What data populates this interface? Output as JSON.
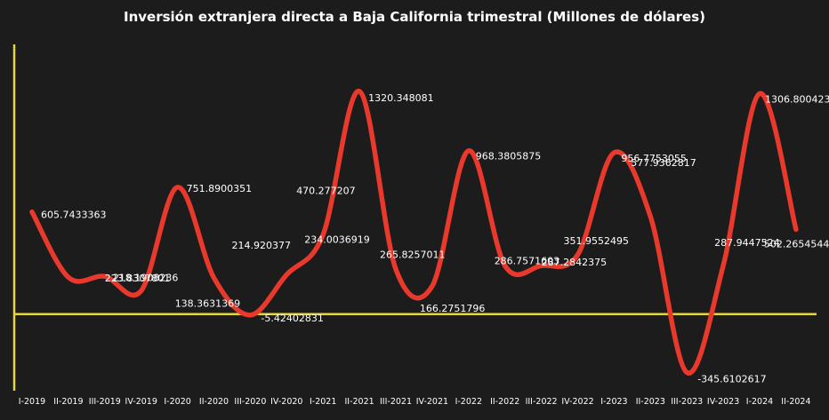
{
  "chart_data": {
    "type": "line",
    "title": "Inversión extranjera directa a Baja California trimestral (Millones de dólares)",
    "xlabel": "",
    "ylabel": "",
    "categories": [
      "I-2019",
      "II-2019",
      "III-2019",
      "IV-2019",
      "I-2020",
      "II-2020",
      "III-2020",
      "IV-2020",
      "I-2021",
      "II-2021",
      "III-2021",
      "IV-2021",
      "I-2022",
      "II-2022",
      "III-2022",
      "IV-2022",
      "I-2023",
      "II-2023",
      "III-2023",
      "IV-2023",
      "I-2024",
      "II-2024"
    ],
    "series": [
      {
        "values": [
          605.7433363,
          218.1908236,
          223.8307801,
          138.3631369,
          751.8900351,
          214.920377,
          -5.42402831,
          234.0036919,
          470.277207,
          1320.348081,
          265.8257011,
          166.2751796,
          968.3805875,
          286.7571603,
          287.2842375,
          351.9552495,
          956.7753055,
          577.9362817,
          -345.6102617,
          287.9447524,
          1306.800423,
          502.2654544
        ],
        "labels": [
          "605.7433363",
          "218.1908236",
          "223.8307801",
          "138.3631369",
          "751.8900351",
          "214.920377",
          "-5.42402831",
          "234.0036919",
          "470.277207",
          "1320.348081",
          "265.8257011",
          "166.2751796",
          "968.3805875",
          "286.7571603",
          "287.2842375",
          "351.9552495",
          "956.7753055",
          "577.9362817",
          "-345.6102617",
          "287.9447524",
          "1306.800423",
          "502.2654544"
        ]
      }
    ],
    "ylim": [
      -480,
      1630
    ],
    "grid": false,
    "legend": "none",
    "colors": {
      "background": "#1c1c1c",
      "line": "#e8392c",
      "axis": "#e5d43a",
      "text": "#ffffff"
    }
  }
}
